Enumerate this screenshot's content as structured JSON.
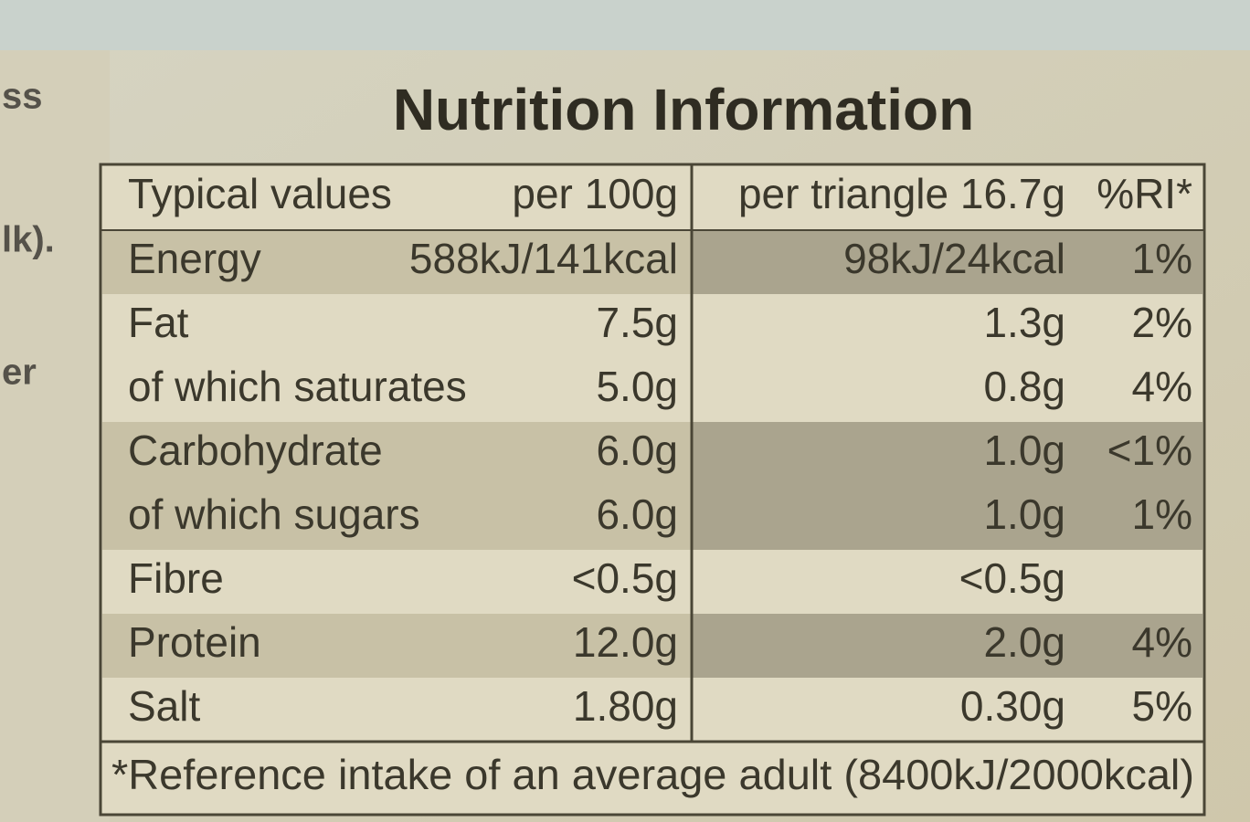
{
  "left_edge": [
    "ss",
    "lk).",
    "er"
  ],
  "title": "Nutrition Information",
  "table": {
    "header": [
      "Typical values",
      "per 100g",
      "per triangle 16.7g",
      "%RI*"
    ],
    "rows": [
      [
        "Energy",
        "588kJ/141kcal",
        "98kJ/24kcal",
        "1%"
      ],
      [
        "Fat",
        "7.5g",
        "1.3g",
        "2%"
      ],
      [
        "of which saturates",
        "5.0g",
        "0.8g",
        "4%"
      ],
      [
        "Carbohydrate",
        "6.0g",
        "1.0g",
        "<1%"
      ],
      [
        "of which sugars",
        "6.0g",
        "1.0g",
        "1%"
      ],
      [
        "Fibre",
        "<0.5g",
        "<0.5g"
      ],
      [
        "Protein",
        "12.0g",
        "2.0g",
        "4%"
      ],
      [
        "Salt",
        "1.80g",
        "0.30g",
        "5%"
      ]
    ],
    "footnote": "*Reference intake of an average adult (8400kJ/2000kcal)"
  }
}
